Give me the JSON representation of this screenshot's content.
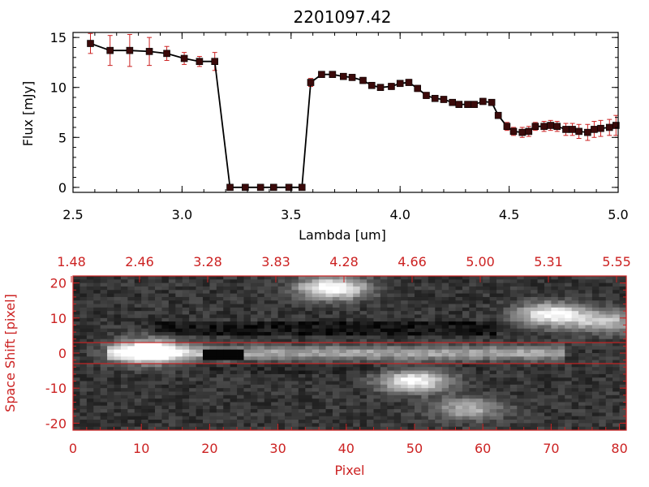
{
  "chart_data": [
    {
      "type": "scatter",
      "title": "2201097.42",
      "xlabel": "Lambda [um]",
      "ylabel": "Flux [mJy]",
      "xlim": [
        2.5,
        5.0
      ],
      "ylim": [
        -0.5,
        15.5
      ],
      "xticks": [
        "2.5",
        "3.0",
        "3.5",
        "4.0",
        "4.5",
        "5.0"
      ],
      "yticks": [
        "0",
        "5",
        "10",
        "15"
      ],
      "colors": {
        "line": "#000000",
        "marker": "#3a0a0a",
        "error": "#cc2222"
      },
      "series": [
        {
          "x": [
            2.58,
            2.67,
            2.76,
            2.85,
            2.93,
            3.01,
            3.08,
            3.15,
            3.22,
            3.29,
            3.36,
            3.42,
            3.49,
            3.55,
            3.59,
            3.64,
            3.69,
            3.74,
            3.78,
            3.83,
            3.87,
            3.91,
            3.96,
            4.0,
            4.04,
            4.08,
            4.12,
            4.16,
            4.2,
            4.24,
            4.27,
            4.31,
            4.34,
            4.38,
            4.42,
            4.45,
            4.49,
            4.52,
            4.56,
            4.59,
            4.62,
            4.66,
            4.69,
            4.72,
            4.76,
            4.79,
            4.82,
            4.86,
            4.89,
            4.92,
            4.96,
            4.99
          ],
          "y": [
            14.4,
            13.7,
            13.7,
            13.6,
            13.4,
            12.9,
            12.6,
            12.6,
            0.0,
            0.0,
            0.0,
            0.0,
            0.0,
            0.0,
            10.5,
            11.3,
            11.3,
            11.1,
            11.0,
            10.7,
            10.2,
            10.0,
            10.1,
            10.4,
            10.5,
            9.9,
            9.2,
            8.9,
            8.8,
            8.5,
            8.3,
            8.3,
            8.3,
            8.6,
            8.5,
            7.2,
            6.1,
            5.6,
            5.5,
            5.6,
            6.1,
            6.1,
            6.2,
            6.1,
            5.8,
            5.8,
            5.6,
            5.5,
            5.8,
            5.9,
            6.0,
            6.2
          ],
          "yerr": [
            1.0,
            1.5,
            1.6,
            1.4,
            0.7,
            0.6,
            0.5,
            0.9,
            0.1,
            0.1,
            0.1,
            0.1,
            0.1,
            0.1,
            0.4,
            0.3,
            0.3,
            0.3,
            0.3,
            0.3,
            0.3,
            0.3,
            0.3,
            0.3,
            0.3,
            0.3,
            0.3,
            0.3,
            0.3,
            0.3,
            0.3,
            0.3,
            0.3,
            0.3,
            0.3,
            0.3,
            0.4,
            0.4,
            0.5,
            0.5,
            0.4,
            0.5,
            0.5,
            0.5,
            0.6,
            0.6,
            0.7,
            0.8,
            0.8,
            0.8,
            0.8,
            1.0
          ]
        }
      ]
    },
    {
      "type": "heatmap",
      "xlabel": "Pixel",
      "ylabel": "Space Shift [pixel]",
      "xlim": [
        0,
        81
      ],
      "ylim": [
        -22,
        22
      ],
      "xticks": [
        "0",
        "10",
        "20",
        "30",
        "40",
        "50",
        "60",
        "70",
        "80"
      ],
      "yticks": [
        "-20",
        "-10",
        "0",
        "10",
        "20"
      ],
      "top_ticks": [
        "1.48",
        "2.46",
        "3.28",
        "3.83",
        "4.28",
        "4.66",
        "5.00",
        "5.31",
        "5.55"
      ],
      "extraction_window": [
        -3,
        3
      ],
      "colors": {
        "axes": "#cc2222",
        "window": "#cc2222"
      },
      "colormap": "gray",
      "sources": [
        {
          "x": 11,
          "y": 0.5,
          "peak": 1.0
        },
        {
          "x": 38,
          "y": 18.5,
          "peak": 0.9
        },
        {
          "x": 50,
          "y": -8,
          "peak": 0.8
        },
        {
          "x": 70,
          "y": 11,
          "peak": 0.8
        },
        {
          "x": 78,
          "y": 9,
          "peak": 0.55
        },
        {
          "x": 58,
          "y": -16,
          "peak": 0.5
        }
      ]
    }
  ]
}
